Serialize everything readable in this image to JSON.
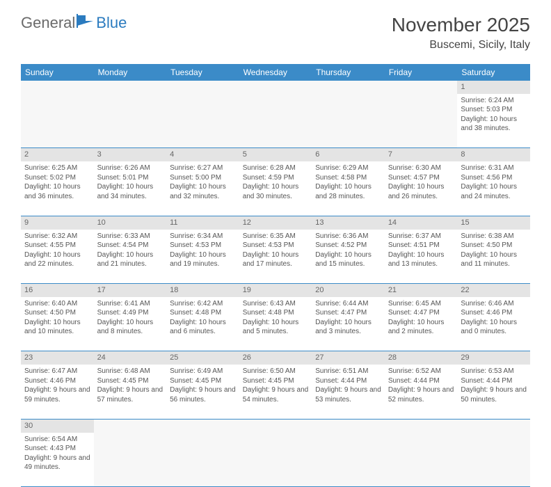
{
  "logo": {
    "general": "General",
    "blue": "Blue"
  },
  "header": {
    "title": "November 2025",
    "location": "Buscemi, Sicily, Italy"
  },
  "colors": {
    "header_bg": "#3b8bc8",
    "header_text": "#ffffff",
    "daynum_bg": "#e4e4e4",
    "cell_bg_alt": "#f7f7f7",
    "border": "#3b8bc8",
    "logo_blue": "#2b7bbf"
  },
  "dayHeaders": [
    "Sunday",
    "Monday",
    "Tuesday",
    "Wednesday",
    "Thursday",
    "Friday",
    "Saturday"
  ],
  "weeks": [
    [
      null,
      null,
      null,
      null,
      null,
      null,
      {
        "n": "1",
        "sr": "6:24 AM",
        "ss": "5:03 PM",
        "dl": "10 hours and 38 minutes."
      }
    ],
    [
      {
        "n": "2",
        "sr": "6:25 AM",
        "ss": "5:02 PM",
        "dl": "10 hours and 36 minutes."
      },
      {
        "n": "3",
        "sr": "6:26 AM",
        "ss": "5:01 PM",
        "dl": "10 hours and 34 minutes."
      },
      {
        "n": "4",
        "sr": "6:27 AM",
        "ss": "5:00 PM",
        "dl": "10 hours and 32 minutes."
      },
      {
        "n": "5",
        "sr": "6:28 AM",
        "ss": "4:59 PM",
        "dl": "10 hours and 30 minutes."
      },
      {
        "n": "6",
        "sr": "6:29 AM",
        "ss": "4:58 PM",
        "dl": "10 hours and 28 minutes."
      },
      {
        "n": "7",
        "sr": "6:30 AM",
        "ss": "4:57 PM",
        "dl": "10 hours and 26 minutes."
      },
      {
        "n": "8",
        "sr": "6:31 AM",
        "ss": "4:56 PM",
        "dl": "10 hours and 24 minutes."
      }
    ],
    [
      {
        "n": "9",
        "sr": "6:32 AM",
        "ss": "4:55 PM",
        "dl": "10 hours and 22 minutes."
      },
      {
        "n": "10",
        "sr": "6:33 AM",
        "ss": "4:54 PM",
        "dl": "10 hours and 21 minutes."
      },
      {
        "n": "11",
        "sr": "6:34 AM",
        "ss": "4:53 PM",
        "dl": "10 hours and 19 minutes."
      },
      {
        "n": "12",
        "sr": "6:35 AM",
        "ss": "4:53 PM",
        "dl": "10 hours and 17 minutes."
      },
      {
        "n": "13",
        "sr": "6:36 AM",
        "ss": "4:52 PM",
        "dl": "10 hours and 15 minutes."
      },
      {
        "n": "14",
        "sr": "6:37 AM",
        "ss": "4:51 PM",
        "dl": "10 hours and 13 minutes."
      },
      {
        "n": "15",
        "sr": "6:38 AM",
        "ss": "4:50 PM",
        "dl": "10 hours and 11 minutes."
      }
    ],
    [
      {
        "n": "16",
        "sr": "6:40 AM",
        "ss": "4:50 PM",
        "dl": "10 hours and 10 minutes."
      },
      {
        "n": "17",
        "sr": "6:41 AM",
        "ss": "4:49 PM",
        "dl": "10 hours and 8 minutes."
      },
      {
        "n": "18",
        "sr": "6:42 AM",
        "ss": "4:48 PM",
        "dl": "10 hours and 6 minutes."
      },
      {
        "n": "19",
        "sr": "6:43 AM",
        "ss": "4:48 PM",
        "dl": "10 hours and 5 minutes."
      },
      {
        "n": "20",
        "sr": "6:44 AM",
        "ss": "4:47 PM",
        "dl": "10 hours and 3 minutes."
      },
      {
        "n": "21",
        "sr": "6:45 AM",
        "ss": "4:47 PM",
        "dl": "10 hours and 2 minutes."
      },
      {
        "n": "22",
        "sr": "6:46 AM",
        "ss": "4:46 PM",
        "dl": "10 hours and 0 minutes."
      }
    ],
    [
      {
        "n": "23",
        "sr": "6:47 AM",
        "ss": "4:46 PM",
        "dl": "9 hours and 59 minutes."
      },
      {
        "n": "24",
        "sr": "6:48 AM",
        "ss": "4:45 PM",
        "dl": "9 hours and 57 minutes."
      },
      {
        "n": "25",
        "sr": "6:49 AM",
        "ss": "4:45 PM",
        "dl": "9 hours and 56 minutes."
      },
      {
        "n": "26",
        "sr": "6:50 AM",
        "ss": "4:45 PM",
        "dl": "9 hours and 54 minutes."
      },
      {
        "n": "27",
        "sr": "6:51 AM",
        "ss": "4:44 PM",
        "dl": "9 hours and 53 minutes."
      },
      {
        "n": "28",
        "sr": "6:52 AM",
        "ss": "4:44 PM",
        "dl": "9 hours and 52 minutes."
      },
      {
        "n": "29",
        "sr": "6:53 AM",
        "ss": "4:44 PM",
        "dl": "9 hours and 50 minutes."
      }
    ],
    [
      {
        "n": "30",
        "sr": "6:54 AM",
        "ss": "4:43 PM",
        "dl": "9 hours and 49 minutes."
      },
      null,
      null,
      null,
      null,
      null,
      null
    ]
  ],
  "labels": {
    "sunrise": "Sunrise: ",
    "sunset": "Sunset: ",
    "daylight": "Daylight: "
  }
}
